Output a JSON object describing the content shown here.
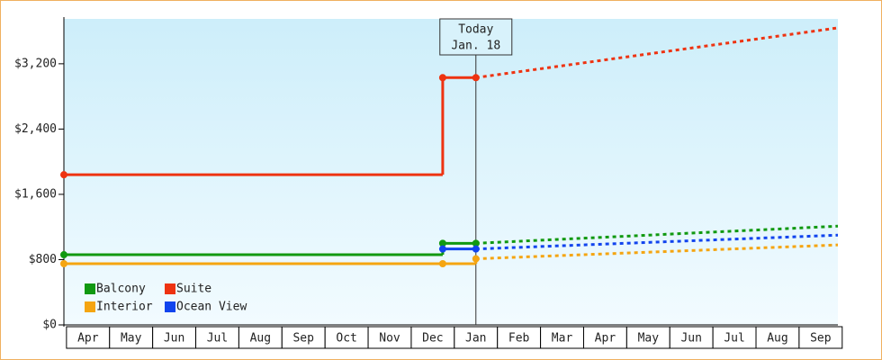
{
  "chart_data": {
    "type": "step-line",
    "categories": [
      "Apr",
      "May",
      "Jun",
      "Jul",
      "Aug",
      "Sep",
      "Oct",
      "Nov",
      "Dec",
      "Jan",
      "Feb",
      "Mar",
      "Apr",
      "May",
      "Jun",
      "Jul",
      "Aug",
      "Sep"
    ],
    "xlim": [
      -0.56,
      17.4
    ],
    "x": [
      -0.56,
      8.23,
      9.0
    ],
    "forecast_x": [
      9.0,
      17.4
    ],
    "ylim": [
      0,
      3750
    ],
    "yticks": [
      {
        "value": 0,
        "label": "$0"
      },
      {
        "value": 800,
        "label": "$800"
      },
      {
        "value": 1600,
        "label": "$1,600"
      },
      {
        "value": 2400,
        "label": "$2,400"
      },
      {
        "value": 3200,
        "label": "$3,200"
      }
    ],
    "series": [
      {
        "name": "Balcony",
        "color": "#119911",
        "values": [
          860,
          1000,
          1000
        ],
        "forecast": [
          1000,
          1210
        ]
      },
      {
        "name": "Suite",
        "color": "#ee3311",
        "values": [
          1840,
          3030,
          3030
        ],
        "forecast": [
          3030,
          3640
        ]
      },
      {
        "name": "Interior",
        "color": "#f5a511",
        "values": [
          750,
          750,
          810
        ],
        "forecast": [
          810,
          980
        ]
      },
      {
        "name": "Ocean View",
        "color": "#1144ee",
        "values": [
          null,
          930,
          930
        ],
        "forecast": [
          930,
          1100
        ]
      }
    ],
    "annotation": {
      "x": 9.0,
      "lines": [
        "Today",
        "Jan. 18"
      ]
    }
  }
}
